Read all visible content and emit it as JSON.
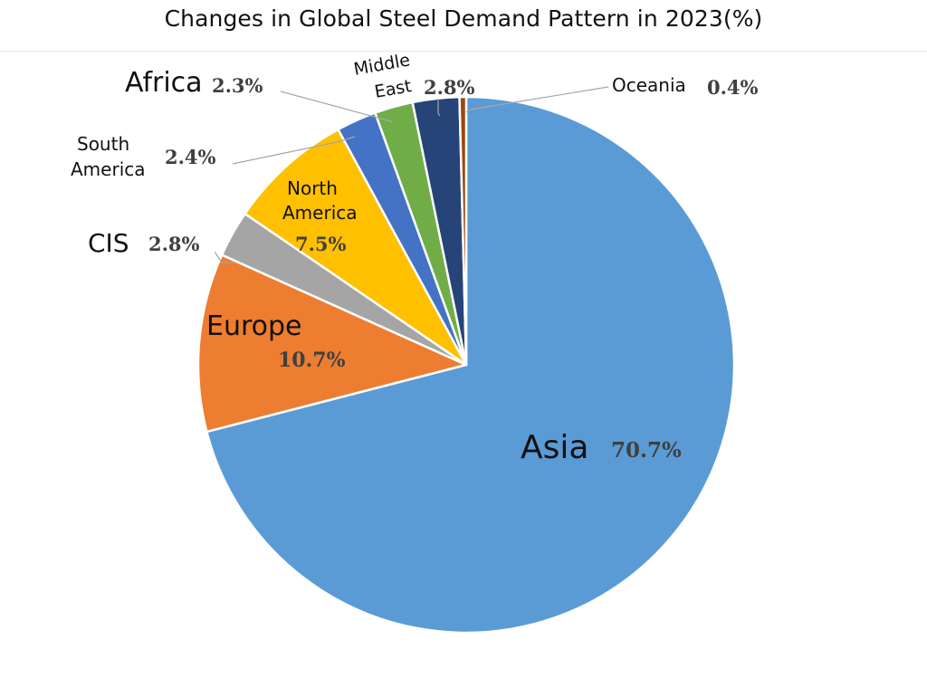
{
  "chart_data": {
    "type": "pie",
    "title": "Changes in Global Steel Demand Pattern in 2023(%)",
    "unit": "%",
    "legend": "none",
    "slices": [
      {
        "name": "Asia",
        "value": 70.7,
        "label": "70.7%",
        "color": "#5B9BD5"
      },
      {
        "name": "Europe",
        "value": 10.7,
        "label": "10.7%",
        "color": "#ED7D31"
      },
      {
        "name": "CIS",
        "value": 2.8,
        "label": "2.8%",
        "color": "#A5A5A5"
      },
      {
        "name": "North America",
        "value": 7.5,
        "label": "7.5%",
        "color": "#FFC000"
      },
      {
        "name": "South America",
        "value": 2.4,
        "label": "2.4%",
        "color": "#4472C4"
      },
      {
        "name": "Africa",
        "value": 2.3,
        "label": "2.3%",
        "color": "#70AD47"
      },
      {
        "name": "Middle East",
        "value": 2.8,
        "label": "2.8%",
        "color": "#264478"
      },
      {
        "name": "Oceania",
        "value": 0.4,
        "label": "0.4%",
        "color": "#9E480E"
      }
    ]
  }
}
